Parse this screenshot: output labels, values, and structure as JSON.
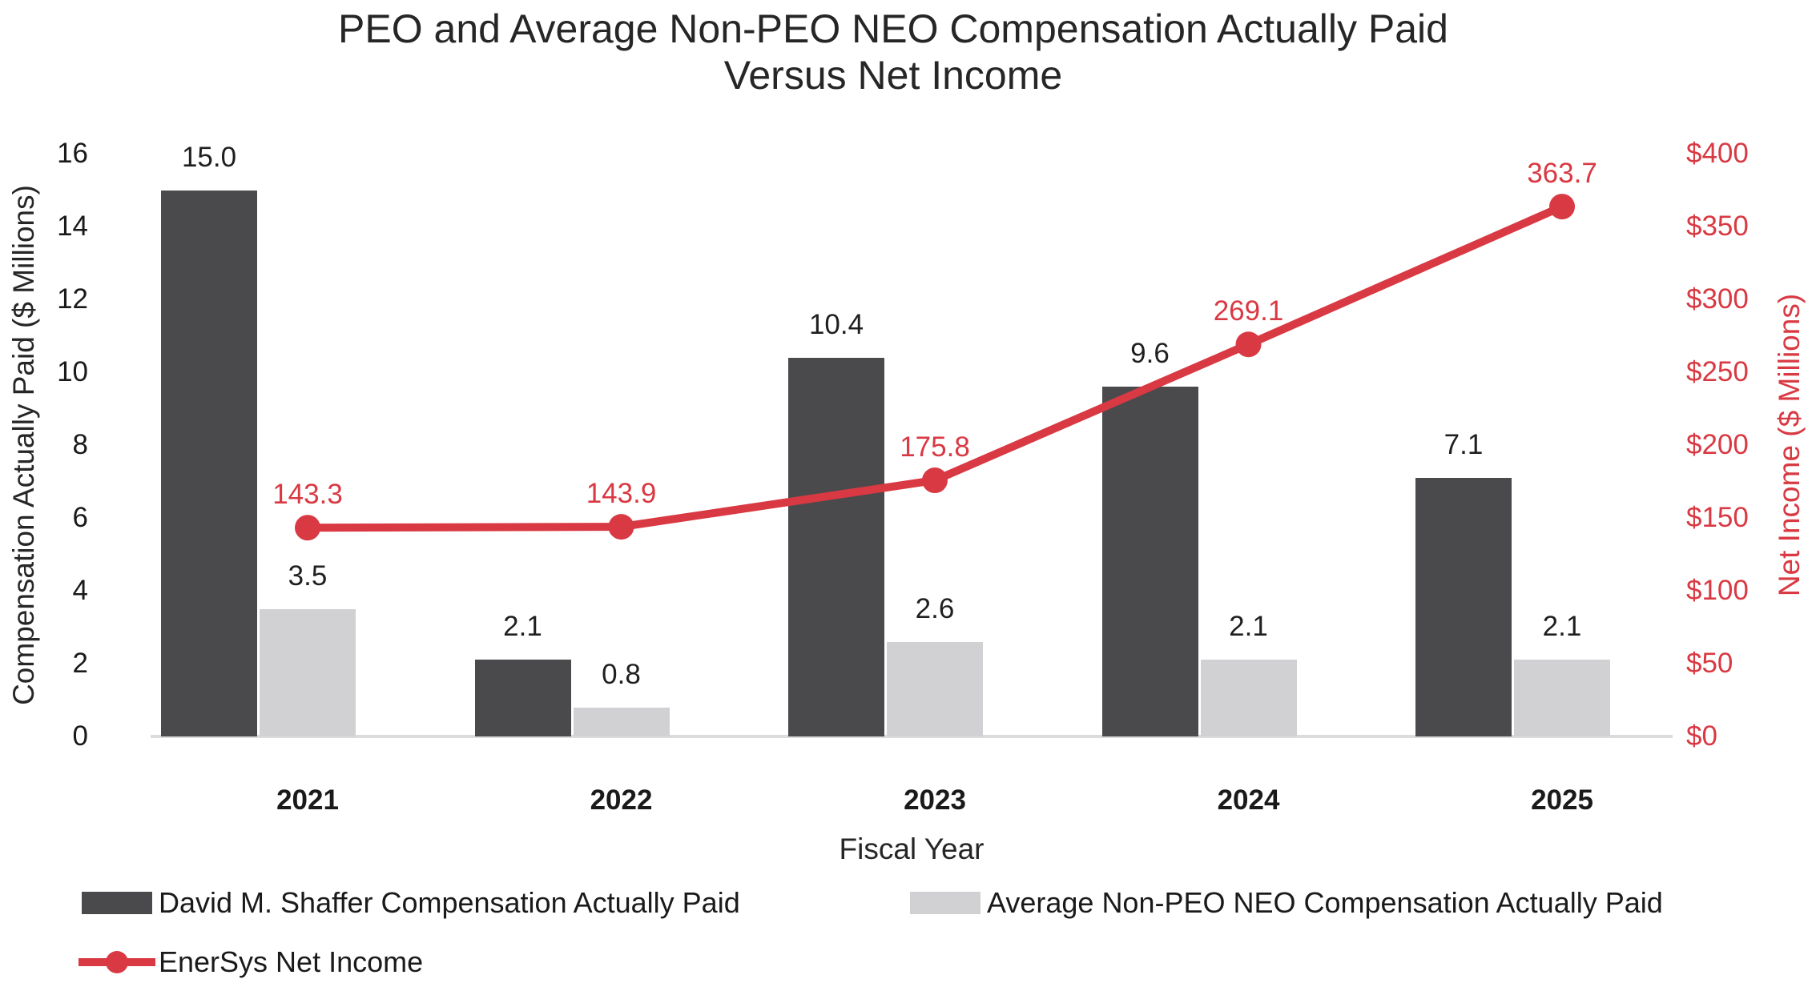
{
  "title": {
    "line1": "PEO and Average Non-PEO NEO Compensation Actually Paid",
    "line2": "Versus Net Income"
  },
  "axes": {
    "left": {
      "title": "Compensation Actually Paid ($ Millions)",
      "ticks": [
        {
          "label": "0",
          "value": 0
        },
        {
          "label": "2",
          "value": 2
        },
        {
          "label": "4",
          "value": 4
        },
        {
          "label": "6",
          "value": 6
        },
        {
          "label": "8",
          "value": 8
        },
        {
          "label": "10",
          "value": 10
        },
        {
          "label": "12",
          "value": 12
        },
        {
          "label": "14",
          "value": 14
        },
        {
          "label": "16",
          "value": 16
        }
      ]
    },
    "right": {
      "title": "Net Income ($ Millions)",
      "ticks": [
        {
          "label": "$0",
          "value": 0
        },
        {
          "label": "$50",
          "value": 50
        },
        {
          "label": "$100",
          "value": 100
        },
        {
          "label": "$150",
          "value": 150
        },
        {
          "label": "$200",
          "value": 200
        },
        {
          "label": "$250",
          "value": 250
        },
        {
          "label": "$300",
          "value": 300
        },
        {
          "label": "$350",
          "value": 350
        },
        {
          "label": "$400",
          "value": 400
        }
      ]
    },
    "x": {
      "title": "Fiscal Year"
    }
  },
  "legend": {
    "items": [
      {
        "label": "David M. Shaffer Compensation Actually Paid"
      },
      {
        "label": "Average Non-PEO NEO Compensation Actually Paid"
      },
      {
        "label": "EnerSys Net Income"
      }
    ]
  },
  "colors": {
    "peo_bar": "#4A4A4D",
    "neo_bar": "#D1D1D3",
    "net_income_line": "#D93942",
    "axis_line": "#DCDCDC",
    "text": "#262626"
  },
  "chart_data": {
    "type": "bar",
    "subtype": "combo-bar-line",
    "title": "PEO and Average Non-PEO NEO Compensation Actually Paid Versus Net Income",
    "categories": [
      "2021",
      "2022",
      "2023",
      "2024",
      "2025"
    ],
    "series": [
      {
        "name": "David M. Shaffer Compensation Actually Paid",
        "type": "bar",
        "axis": "left",
        "color": "#4A4A4D",
        "values": [
          15.0,
          2.1,
          10.4,
          9.6,
          7.1
        ],
        "labels": [
          "15.0",
          "2.1",
          "10.4",
          "9.6",
          "7.1"
        ]
      },
      {
        "name": "Average Non-PEO NEO Compensation Actually Paid",
        "type": "bar",
        "axis": "left",
        "color": "#D1D1D3",
        "values": [
          3.5,
          0.8,
          2.6,
          2.1,
          2.1
        ],
        "labels": [
          "3.5",
          "0.8",
          "2.6",
          "2.1",
          "2.1"
        ]
      },
      {
        "name": "EnerSys Net Income",
        "type": "line",
        "axis": "right",
        "color": "#D93942",
        "values": [
          143.3,
          143.9,
          175.8,
          269.1,
          363.7
        ],
        "labels": [
          "143.3",
          "143.9",
          "175.8",
          "269.1",
          "363.7"
        ]
      }
    ],
    "xlabel": "Fiscal Year",
    "ylabel_left": "Compensation Actually Paid ($ Millions)",
    "ylabel_right": "Net Income ($ Millions)",
    "left_axis_range": [
      0,
      16
    ],
    "right_axis_range": [
      0,
      400
    ],
    "grid": false,
    "legend_position": "bottom"
  }
}
